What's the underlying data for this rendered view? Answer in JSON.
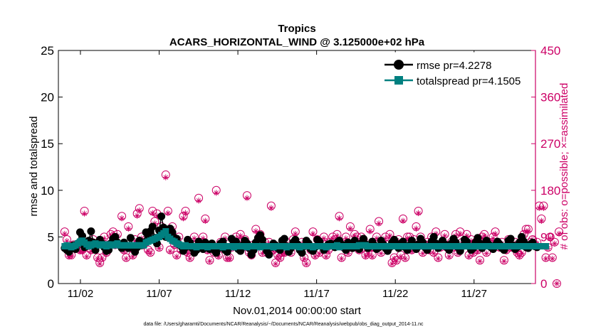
{
  "chart_data": {
    "type": "scatter",
    "title": "Tropics",
    "subtitle": "ACARS_HORIZONTAL_WIND @ 3.125000e+02 hPa",
    "xlabel": "Nov.01,2014 00:00:00 start",
    "ylabel_left": "rmse and totalspread",
    "ylabel_right": "# of obs: o=possible; ×=assimilated",
    "footnote": "data file: /Users/gharamti/Documents/NCAR/Reanalysis/~/Documents/NCAR/Reanalysis/webpub/obs_diag_output_2014-11.nc",
    "x_range_days": [
      0.6,
      30.9
    ],
    "x_ticks": [
      {
        "day": 2,
        "label": "11/02"
      },
      {
        "day": 7,
        "label": "11/07"
      },
      {
        "day": 12,
        "label": "11/12"
      },
      {
        "day": 17,
        "label": "11/17"
      },
      {
        "day": 22,
        "label": "11/22"
      },
      {
        "day": 27,
        "label": "11/27"
      }
    ],
    "ylim_left": [
      0,
      25
    ],
    "yticks_left": [
      "0",
      "5",
      "10",
      "15",
      "20",
      "25"
    ],
    "ylim_right": [
      0,
      450
    ],
    "yticks_right": [
      "0",
      "90",
      "180",
      "270",
      "360",
      "450"
    ],
    "legend": {
      "position": "top-right",
      "entries": [
        "rmse pr=4.2278",
        "totalspread pr=4.1505"
      ]
    },
    "colors": {
      "rmse": "#000000",
      "totalspread": "#008080",
      "obs": "#cc0066",
      "axis": "#000000",
      "right_axis": "#cc0066"
    },
    "series": [
      {
        "name": "rmse",
        "style": "line-filled-circle",
        "color": "#000000",
        "values": [
          3.8,
          3.6,
          3.4,
          3.9,
          4.1,
          3.7,
          4.3,
          5.5,
          5.1,
          3.9,
          4.0,
          4.6,
          5.6,
          4.4,
          3.6,
          4.2,
          4.7,
          4.3,
          3.9,
          3.5,
          3.6,
          4.3,
          4.8,
          5.0,
          4.4,
          4.2,
          3.8,
          4.4,
          4.1,
          3.8,
          4.9,
          4.0,
          3.4,
          3.9,
          4.6,
          4.1,
          4.4,
          5.5,
          5.0,
          5.6,
          6.1,
          4.9,
          4.3,
          5.7,
          7.2,
          6.0,
          5.0,
          5.8,
          5.9,
          5.5,
          4.9,
          4.8,
          4.2,
          4.0,
          3.5,
          3.9,
          4.7,
          4.4,
          3.8,
          3.3,
          3.6,
          4.5,
          4.2,
          3.7,
          4.4,
          4.0,
          3.7,
          4.3,
          3.6,
          3.3,
          3.8,
          4.3,
          4.5,
          3.6,
          3.4,
          3.9,
          4.8,
          4.2,
          4.5,
          3.7,
          3.5,
          4.1,
          4.6,
          4.3,
          3.8,
          3.1,
          3.6,
          4.4,
          4.9,
          5.2,
          4.7,
          4.0,
          3.5,
          3.1,
          3.9,
          4.3,
          4.1,
          3.8,
          3.6,
          4.6,
          4.8,
          4.0,
          3.4,
          3.8,
          4.4,
          4.7,
          4.2,
          3.6,
          3.3,
          4.0,
          4.6,
          4.3,
          3.7,
          3.5,
          3.9,
          4.7,
          4.5,
          4.0,
          3.6,
          3.9,
          4.2,
          4.3,
          4.1,
          3.9,
          4.4,
          4.6,
          4.2,
          3.9,
          3.6,
          4.4,
          4.0,
          3.8,
          4.6,
          4.1,
          3.7,
          4.3,
          4.8,
          4.2,
          3.8,
          4.0,
          4.5,
          4.1,
          3.7,
          3.9,
          4.6,
          4.2,
          3.8,
          3.5,
          3.9,
          4.4,
          4.7,
          4.1,
          3.8,
          4.3,
          4.5,
          3.9,
          3.6,
          4.1,
          4.6,
          4.0,
          3.7,
          4.2,
          4.8,
          4.4,
          3.9,
          3.6,
          4.0,
          4.5,
          5.0,
          4.3,
          3.8,
          4.1,
          4.6,
          4.2,
          3.9,
          3.6,
          4.3,
          4.8,
          4.4,
          3.9,
          3.5,
          4.0,
          4.7,
          4.5,
          4.0,
          3.6,
          3.8,
          4.4,
          4.9,
          4.3,
          3.8,
          4.1,
          4.6,
          4.2,
          3.9,
          3.7,
          4.1,
          4.5,
          4.2,
          3.8,
          3.6,
          4.0,
          4.6,
          4.8,
          4.1,
          3.7,
          3.9,
          4.4,
          5.0,
          4.5,
          3.9,
          3.8,
          4.2,
          4.4,
          4.0,
          3.9
        ]
      },
      {
        "name": "totalspread",
        "style": "line-filled-square",
        "color": "#008080",
        "values": [
          4.0,
          4.1,
          4.0,
          3.9,
          4.0,
          4.1,
          4.3,
          4.5,
          4.6,
          4.4,
          4.2,
          4.0,
          4.1,
          4.2,
          4.3,
          4.2,
          4.1,
          4.2,
          4.1,
          4.0,
          4.2,
          4.1,
          4.1,
          4.2,
          4.3,
          4.1,
          4.1,
          4.1,
          4.1,
          4.1,
          4.1,
          4.1,
          4.1,
          4.1,
          4.1,
          4.1,
          4.1,
          4.4,
          4.5,
          4.6,
          4.7,
          4.8,
          4.9,
          5.0,
          5.2,
          5.4,
          5.6,
          5.0,
          4.8,
          4.6,
          4.5,
          4.3,
          4.2,
          4.1,
          4.0,
          4.1,
          4.0,
          4.0,
          4.0,
          4.0,
          3.9,
          4.0,
          4.0,
          4.0,
          4.0,
          3.9,
          4.0,
          4.0,
          4.0,
          4.0,
          4.0,
          4.0,
          3.9,
          4.0,
          4.0,
          4.0,
          4.0,
          3.9,
          4.0,
          4.0,
          4.0,
          4.0,
          4.0,
          3.9,
          4.0,
          4.0,
          4.0,
          4.0,
          4.0,
          3.9,
          4.0,
          4.0,
          4.0,
          4.0,
          4.0,
          3.9,
          4.0,
          4.0,
          4.0,
          4.0,
          4.0,
          3.9,
          4.0,
          4.0,
          4.0,
          4.0,
          4.0,
          3.9,
          4.0,
          4.0,
          4.0,
          4.0,
          4.0,
          3.9,
          4.0,
          4.0,
          4.0,
          4.0,
          4.0,
          3.9,
          4.0,
          4.0,
          4.0,
          4.0,
          4.1,
          3.9,
          4.0,
          4.0,
          4.0,
          4.0,
          4.0,
          4.0,
          4.0,
          4.0,
          4.1,
          4.1,
          4.1,
          4.1,
          4.0,
          4.0,
          4.0,
          4.0,
          4.0,
          4.0,
          4.0,
          4.0,
          4.0,
          4.0,
          4.0,
          4.0,
          4.0,
          4.0,
          4.0,
          4.0,
          4.0,
          4.0,
          4.0,
          4.0,
          4.0,
          4.0,
          4.0,
          4.0,
          4.0,
          4.0,
          4.0,
          4.0,
          4.0,
          4.0,
          4.0,
          4.0,
          4.0,
          4.0,
          4.0,
          4.0,
          4.0,
          4.0,
          4.0,
          4.0,
          4.0,
          4.0,
          4.0,
          4.0,
          4.0,
          4.0,
          4.0,
          4.0,
          4.0,
          4.0,
          4.0,
          4.0,
          4.0,
          4.0,
          4.0,
          4.0,
          4.0,
          4.0,
          4.0,
          4.0,
          4.0,
          4.0,
          4.0,
          4.0,
          4.0,
          4.0,
          4.0,
          4.0,
          4.0,
          4.0,
          4.0,
          4.0,
          4.0,
          4.0,
          4.0,
          4.0,
          4.0,
          4.0,
          4.0,
          4.0,
          4.0,
          4.0
        ]
      },
      {
        "name": "obs_possible",
        "axis": "right",
        "style": "circle-and-star",
        "color": "#cc0066",
        "values": [
          100,
          85,
          55,
          55,
          75,
          70,
          75,
          65,
          65,
          140,
          55,
          80,
          65,
          85,
          75,
          50,
          40,
          50,
          90,
          60,
          75,
          95,
          100,
          75,
          95,
          75,
          130,
          65,
          50,
          110,
          70,
          55,
          85,
          135,
          145,
          90,
          75,
          85,
          65,
          60,
          140,
          120,
          135,
          70,
          110,
          100,
          210,
          140,
          65,
          110,
          75,
          55,
          90,
          65,
          130,
          140,
          60,
          50,
          65,
          90,
          75,
          165,
          75,
          90,
          125,
          65,
          45,
          75,
          60,
          180,
          55,
          80,
          70,
          90,
          50,
          50,
          70,
          80,
          90,
          75,
          95,
          70,
          85,
          170,
          60,
          55,
          75,
          105,
          75,
          95,
          60,
          80,
          60,
          80,
          150,
          65,
          40,
          55,
          50,
          60,
          60,
          80,
          70,
          60,
          85,
          100,
          75,
          70,
          80,
          50,
          40,
          75,
          65,
          100,
          55,
          85,
          60,
          80,
          90,
          55,
          65,
          80,
          90,
          85,
          95,
          130,
          50,
          70,
          90,
          60,
          110,
          75,
          95,
          90,
          65,
          90,
          85,
          55,
          60,
          105,
          55,
          70,
          90,
          120,
          60,
          75,
          90,
          75,
          95,
          40,
          50,
          45,
          85,
          55,
          125,
          50,
          90,
          90,
          65,
          85,
          110,
          140,
          90,
          60,
          75,
          80,
          65,
          90,
          60,
          100,
          50,
          70,
          80,
          95,
          70,
          55,
          80,
          70,
          95,
          60,
          100,
          80,
          75,
          95,
          55,
          85,
          60,
          80,
          65,
          45,
          90,
          95,
          60,
          80,
          75,
          90,
          100,
          80,
          70,
          80,
          45,
          65,
          85,
          70,
          70,
          80,
          60,
          55,
          60,
          95,
          105,
          105,
          80,
          85,
          75,
          80,
          150,
          125,
          150,
          50,
          70,
          90,
          50,
          80,
          0,
          100
        ]
      },
      {
        "name": "obs_assimilated",
        "axis": "right",
        "style": "star",
        "color": "#cc0066",
        "values": [
          96,
          82,
          52,
          53,
          72,
          68,
          72,
          62,
          62,
          135,
          52,
          77,
          62,
          82,
          72,
          48,
          38,
          48,
          87,
          57,
          72,
          92,
          96,
          72,
          92,
          72,
          126,
          62,
          48,
          106,
          68,
          52,
          82,
          131,
          141,
          87,
          72,
          82,
          62,
          58,
          136,
          116,
          131,
          68,
          106,
          96,
          205,
          136,
          62,
          106,
          72,
          52,
          87,
          62,
          126,
          136,
          58,
          48,
          62,
          87,
          72,
          160,
          72,
          87,
          121,
          62,
          43,
          72,
          58,
          175,
          52,
          77,
          68,
          87,
          48,
          48,
          68,
          77,
          87,
          72,
          92,
          68,
          82,
          165,
          58,
          52,
          72,
          101,
          72,
          92,
          58,
          77,
          58,
          77,
          146,
          62,
          38,
          52,
          48,
          58,
          58,
          77,
          68,
          58,
          82,
          96,
          72,
          68,
          77,
          48,
          38,
          72,
          62,
          96,
          52,
          82,
          58,
          77,
          87,
          52,
          62,
          77,
          87,
          82,
          92,
          126,
          48,
          68,
          87,
          58,
          106,
          72,
          92,
          87,
          62,
          87,
          82,
          52,
          58,
          101,
          52,
          68,
          87,
          116,
          58,
          72,
          87,
          72,
          92,
          38,
          48,
          43,
          82,
          52,
          121,
          48,
          87,
          87,
          62,
          82,
          106,
          136,
          87,
          58,
          72,
          77,
          62,
          87,
          58,
          96,
          48,
          68,
          77,
          92,
          68,
          52,
          77,
          68,
          92,
          58,
          96,
          77,
          72,
          92,
          52,
          82,
          58,
          77,
          62,
          43,
          87,
          92,
          58,
          77,
          72,
          87,
          96,
          77,
          68,
          77,
          43,
          62,
          82,
          68,
          68,
          77,
          58,
          52,
          58,
          92,
          101,
          101,
          77,
          82,
          72,
          77,
          146,
          121,
          146,
          48,
          68,
          87,
          48,
          77,
          0,
          96
        ]
      }
    ]
  }
}
